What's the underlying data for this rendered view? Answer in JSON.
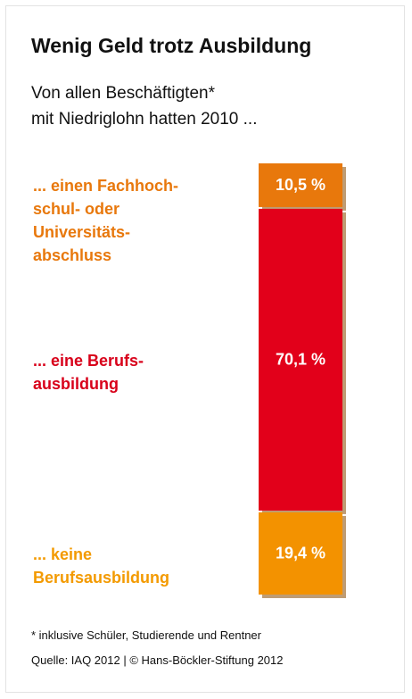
{
  "chart_data": {
    "type": "stacked-bar",
    "title": "Wenig Geld trotz Ausbildung",
    "subtitle": "Von allen Beschäftigten*\nmit Niedriglohn hatten 2010 ...",
    "categories": [
      "... einen Fachhoch-\nschul- oder\nUniversitäts-\nabschluss",
      "... eine Berufs-\nausbildung",
      "... keine\nBerufsausbildung"
    ],
    "values": [
      10.5,
      70.1,
      19.4
    ],
    "value_labels": [
      "10,5 %",
      "70,1 %",
      "19,4 %"
    ],
    "colors": [
      "#e8780c",
      "#e2001a",
      "#f39200"
    ],
    "label_colors": [
      "#e8780c",
      "#d8001a",
      "#f39a00"
    ],
    "ylim": [
      0,
      100
    ],
    "footnote": "* inklusive Schüler, Studierende und Rentner",
    "source": "Quelle: IAQ 2012 | © Hans-Böckler-Stiftung 2012"
  }
}
